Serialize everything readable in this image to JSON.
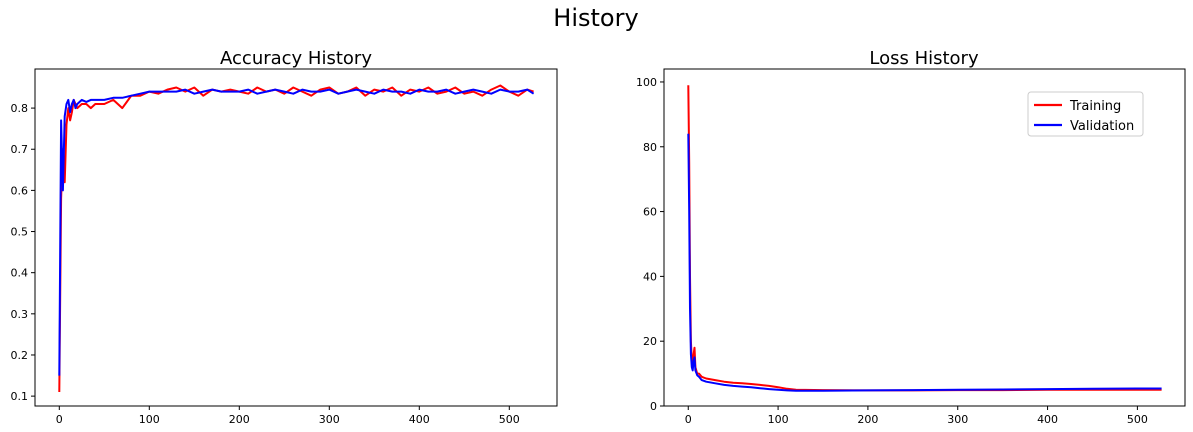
{
  "figure": {
    "suptitle": "History"
  },
  "chart_data": [
    {
      "type": "line",
      "title": "Accuracy History",
      "xlabel": "",
      "ylabel": "",
      "xlim": [
        -27,
        553
      ],
      "ylim": [
        0.076,
        0.895
      ],
      "xticks": [
        0,
        100,
        200,
        300,
        400,
        500
      ],
      "yticks": [
        0.1,
        0.2,
        0.3,
        0.4,
        0.5,
        0.6,
        0.7,
        0.8
      ],
      "grid": false,
      "legend": "none",
      "series": [
        {
          "color": "#ff0000",
          "x": [
            0,
            2,
            4,
            6,
            8,
            10,
            12,
            14,
            16,
            18,
            20,
            25,
            30,
            35,
            40,
            50,
            60,
            70,
            80,
            90,
            100,
            110,
            120,
            130,
            140,
            150,
            160,
            170,
            180,
            190,
            200,
            210,
            220,
            230,
            240,
            250,
            260,
            270,
            280,
            290,
            300,
            310,
            320,
            330,
            340,
            350,
            360,
            370,
            380,
            390,
            400,
            410,
            420,
            430,
            440,
            450,
            460,
            470,
            480,
            490,
            500,
            510,
            520,
            527
          ],
          "y": [
            0.11,
            0.58,
            0.7,
            0.62,
            0.76,
            0.8,
            0.77,
            0.79,
            0.82,
            0.81,
            0.8,
            0.81,
            0.81,
            0.8,
            0.81,
            0.81,
            0.82,
            0.8,
            0.83,
            0.83,
            0.84,
            0.835,
            0.845,
            0.85,
            0.84,
            0.85,
            0.83,
            0.845,
            0.84,
            0.845,
            0.84,
            0.835,
            0.85,
            0.84,
            0.845,
            0.835,
            0.85,
            0.84,
            0.83,
            0.845,
            0.85,
            0.835,
            0.84,
            0.85,
            0.83,
            0.845,
            0.84,
            0.85,
            0.83,
            0.845,
            0.84,
            0.85,
            0.835,
            0.84,
            0.85,
            0.835,
            0.84,
            0.83,
            0.845,
            0.855,
            0.84,
            0.83,
            0.845,
            0.84
          ]
        },
        {
          "color": "#0000ff",
          "x": [
            0,
            2,
            4,
            6,
            8,
            10,
            12,
            14,
            16,
            18,
            20,
            25,
            30,
            35,
            40,
            50,
            60,
            70,
            80,
            90,
            100,
            110,
            120,
            130,
            140,
            150,
            160,
            170,
            180,
            190,
            200,
            210,
            220,
            230,
            240,
            250,
            260,
            270,
            280,
            290,
            300,
            310,
            320,
            330,
            340,
            350,
            360,
            370,
            380,
            390,
            400,
            410,
            420,
            430,
            440,
            450,
            460,
            470,
            480,
            490,
            500,
            510,
            520,
            527
          ],
          "y": [
            0.15,
            0.77,
            0.6,
            0.78,
            0.81,
            0.82,
            0.79,
            0.81,
            0.82,
            0.8,
            0.81,
            0.82,
            0.815,
            0.82,
            0.82,
            0.82,
            0.825,
            0.825,
            0.83,
            0.835,
            0.84,
            0.84,
            0.84,
            0.84,
            0.845,
            0.835,
            0.84,
            0.845,
            0.84,
            0.84,
            0.84,
            0.845,
            0.835,
            0.84,
            0.845,
            0.84,
            0.835,
            0.845,
            0.84,
            0.84,
            0.845,
            0.835,
            0.84,
            0.845,
            0.84,
            0.835,
            0.845,
            0.84,
            0.84,
            0.835,
            0.845,
            0.84,
            0.84,
            0.845,
            0.835,
            0.84,
            0.845,
            0.84,
            0.835,
            0.845,
            0.84,
            0.84,
            0.845,
            0.835
          ]
        }
      ]
    },
    {
      "type": "line",
      "title": "Loss History",
      "xlabel": "",
      "ylabel": "",
      "xlim": [
        -27,
        553
      ],
      "ylim": [
        0,
        104
      ],
      "xticks": [
        0,
        100,
        200,
        300,
        400,
        500
      ],
      "yticks": [
        0,
        20,
        40,
        60,
        80,
        100
      ],
      "grid": false,
      "legend": "upper right",
      "series": [
        {
          "name": "Training",
          "color": "#ff0000",
          "x": [
            0,
            1,
            2,
            3,
            4,
            5,
            6,
            7,
            8,
            10,
            12,
            15,
            20,
            30,
            40,
            50,
            60,
            70,
            80,
            90,
            100,
            110,
            120,
            150,
            200,
            250,
            300,
            350,
            400,
            450,
            500,
            527
          ],
          "y": [
            99,
            75,
            40,
            20,
            14,
            12,
            16,
            18,
            12,
            10,
            10,
            9,
            8.5,
            8,
            7.5,
            7.2,
            7,
            6.8,
            6.5,
            6.2,
            5.8,
            5.3,
            5,
            4.9,
            4.8,
            4.8,
            4.9,
            4.9,
            5,
            5,
            5,
            5
          ]
        },
        {
          "name": "Validation",
          "color": "#0000ff",
          "x": [
            0,
            1,
            2,
            3,
            4,
            5,
            6,
            7,
            8,
            10,
            12,
            15,
            20,
            30,
            40,
            50,
            60,
            70,
            80,
            90,
            100,
            110,
            120,
            150,
            200,
            250,
            300,
            350,
            400,
            450,
            500,
            527
          ],
          "y": [
            84,
            60,
            30,
            16,
            12,
            11,
            14,
            15,
            11,
            9.5,
            9,
            8,
            7.5,
            7,
            6.5,
            6.2,
            6,
            5.8,
            5.5,
            5.2,
            5,
            4.8,
            4.7,
            4.7,
            4.8,
            4.9,
            5,
            5.1,
            5.2,
            5.3,
            5.4,
            5.4
          ]
        }
      ]
    }
  ]
}
